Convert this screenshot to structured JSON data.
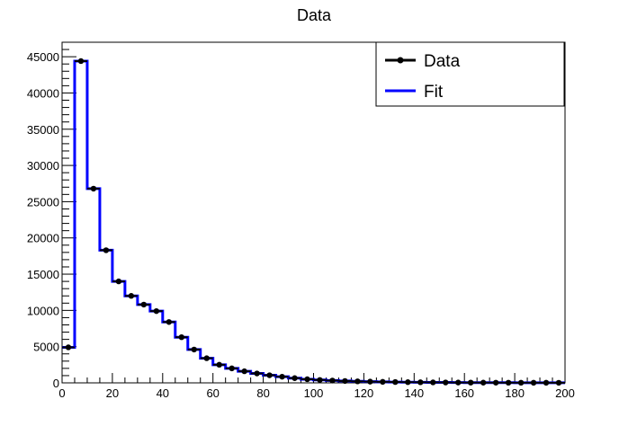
{
  "chart_data": {
    "type": "line",
    "title": "Data",
    "xlabel": "",
    "ylabel": "",
    "xlim": [
      0,
      200
    ],
    "ylim": [
      0,
      47000
    ],
    "grid": false,
    "legend_position": "top-right",
    "bin_width": 5,
    "x_ticks": [
      "0",
      "20",
      "40",
      "60",
      "80",
      "100",
      "120",
      "140",
      "160",
      "180",
      "200"
    ],
    "y_ticks": [
      "0",
      "5000",
      "10000",
      "15000",
      "20000",
      "25000",
      "30000",
      "35000",
      "40000",
      "45000"
    ],
    "legend": [
      {
        "label": "Data",
        "style": "marker-line",
        "color": "#000000"
      },
      {
        "label": "Fit",
        "style": "line",
        "color": "#0000ff"
      }
    ],
    "series": [
      {
        "name": "Data",
        "color": "#000000",
        "x": [
          2.5,
          7.5,
          12.5,
          17.5,
          22.5,
          27.5,
          32.5,
          37.5,
          42.5,
          47.5,
          52.5,
          57.5,
          62.5,
          67.5,
          72.5,
          77.5,
          82.5,
          87.5,
          92.5,
          97.5,
          102.5,
          107.5,
          112.5,
          117.5,
          122.5,
          127.5,
          132.5,
          137.5,
          142.5,
          147.5,
          152.5,
          157.5,
          162.5,
          167.5,
          172.5,
          177.5,
          182.5,
          187.5,
          192.5,
          197.5
        ],
        "values": [
          4900,
          44400,
          26800,
          18300,
          14000,
          12000,
          10800,
          9900,
          8400,
          6300,
          4600,
          3400,
          2500,
          2000,
          1600,
          1300,
          1050,
          850,
          650,
          500,
          400,
          320,
          260,
          210,
          170,
          140,
          115,
          95,
          80,
          65,
          55,
          45,
          38,
          32,
          28,
          24,
          20,
          17,
          15,
          13
        ]
      },
      {
        "name": "Fit",
        "color": "#0000ff",
        "x": [
          2.5,
          7.5,
          12.5,
          17.5,
          22.5,
          27.5,
          32.5,
          37.5,
          42.5,
          47.5,
          52.5,
          57.5,
          62.5,
          67.5,
          72.5,
          77.5,
          82.5,
          87.5,
          92.5,
          97.5,
          102.5,
          107.5,
          112.5,
          117.5,
          122.5,
          127.5,
          132.5,
          137.5,
          142.5,
          147.5,
          152.5,
          157.5,
          162.5,
          167.5,
          172.5,
          177.5,
          182.5,
          187.5,
          192.5,
          197.5
        ],
        "values": [
          4900,
          44400,
          26800,
          18300,
          14000,
          12000,
          10800,
          9900,
          8400,
          6300,
          4600,
          3400,
          2500,
          2000,
          1600,
          1300,
          1050,
          850,
          650,
          500,
          400,
          320,
          260,
          210,
          170,
          140,
          115,
          95,
          80,
          65,
          55,
          45,
          38,
          32,
          28,
          24,
          20,
          17,
          15,
          13
        ]
      }
    ]
  }
}
